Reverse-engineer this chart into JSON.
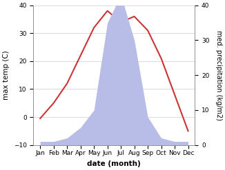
{
  "months": [
    "Jan",
    "Feb",
    "Mar",
    "Apr",
    "May",
    "Jun",
    "Jul",
    "Aug",
    "Sep",
    "Oct",
    "Nov",
    "Dec"
  ],
  "month_positions": [
    1,
    2,
    3,
    4,
    5,
    6,
    7,
    8,
    9,
    10,
    11,
    12
  ],
  "temperature": [
    -0.5,
    5,
    12,
    22,
    32,
    38,
    34,
    36,
    31,
    21,
    8,
    -5
  ],
  "precipitation": [
    1,
    1,
    2,
    5,
    10,
    35,
    43,
    30,
    8,
    2,
    1,
    1
  ],
  "temp_color": "#cc3333",
  "precip_fill_color": "#b8bde8",
  "temp_ylim": [
    -10,
    40
  ],
  "precip_ylim": [
    0,
    40
  ],
  "xlabel": "date (month)",
  "ylabel_left": "max temp (C)",
  "ylabel_right": "med. precipitation (kg/m2)",
  "background_color": "#ffffff",
  "line_width": 1.5,
  "label_fontsize": 7.5,
  "tick_fontsize": 6.5
}
